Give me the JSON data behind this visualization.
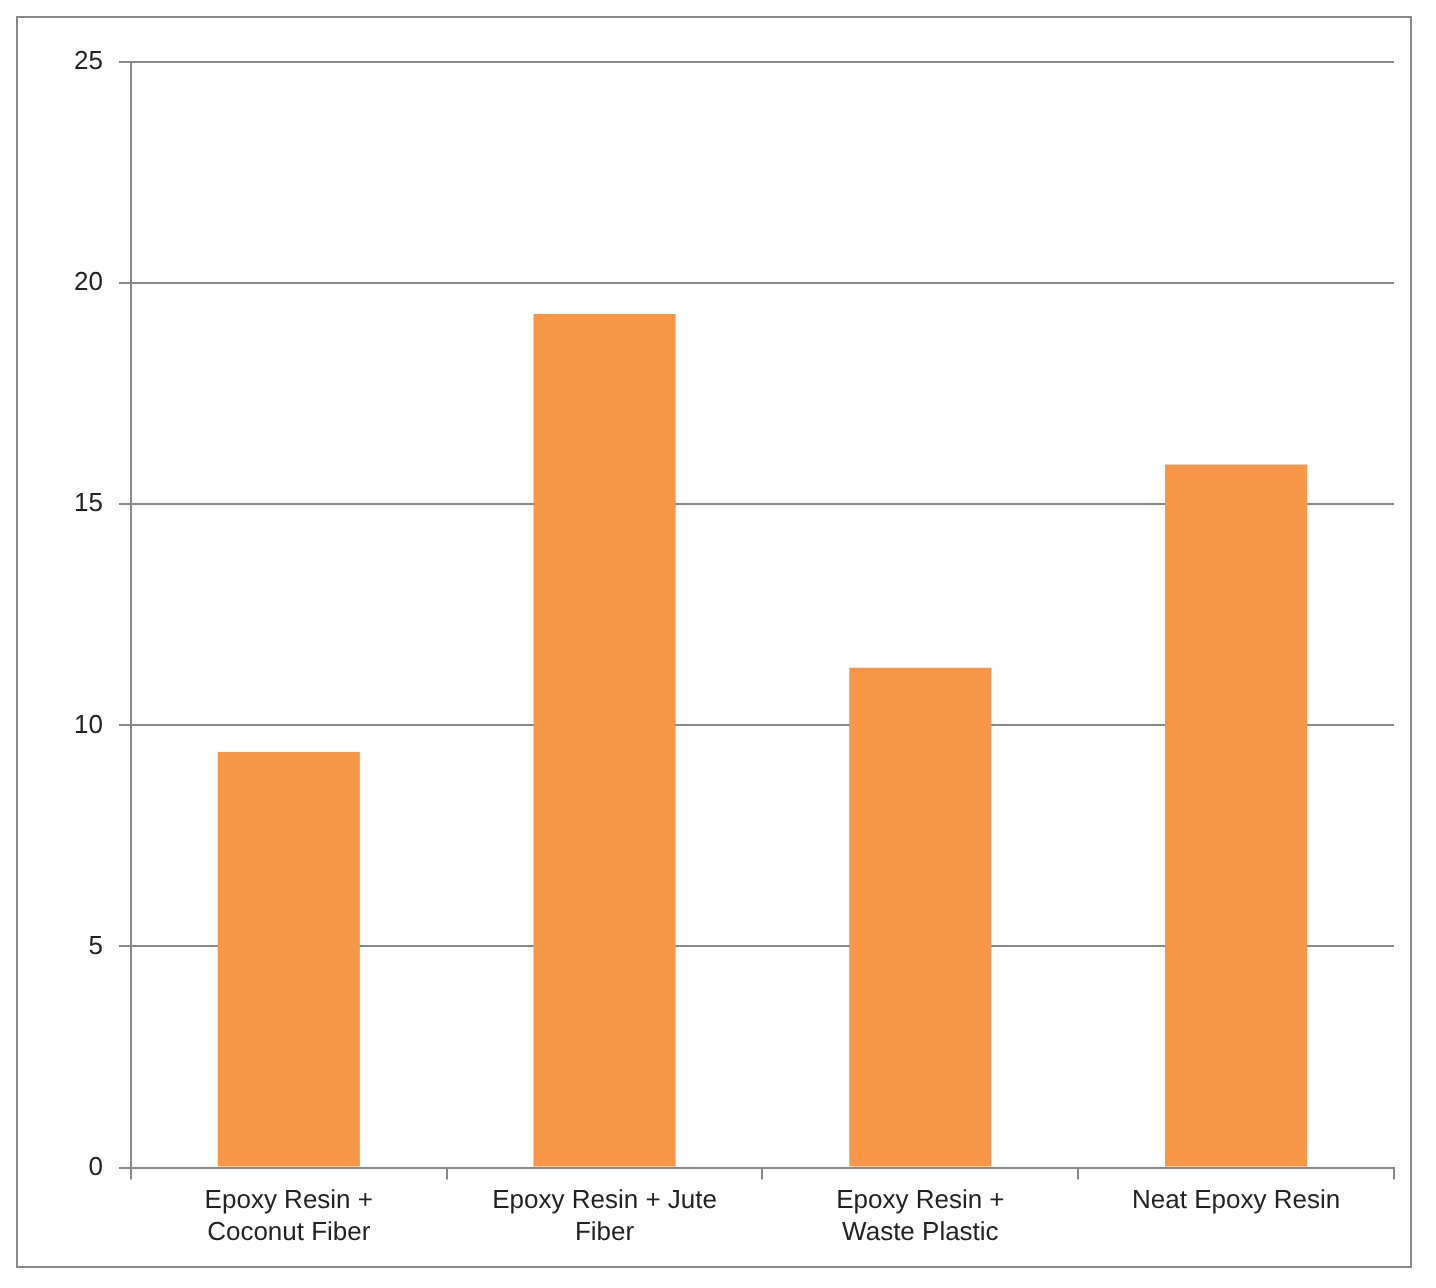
{
  "chart_data": {
    "type": "bar",
    "categories": [
      "Epoxy Resin + Coconut Fiber",
      "Epoxy Resin + Jute Fiber",
      "Epoxy Resin + Waste Plastic",
      "Neat Epoxy Resin"
    ],
    "values": [
      9.4,
      19.3,
      11.3,
      15.9
    ],
    "color": "#f79646",
    "ylim": [
      0,
      25
    ],
    "yticks": [
      0,
      5,
      10,
      15,
      20,
      25
    ],
    "grid": "y",
    "legend": false
  }
}
